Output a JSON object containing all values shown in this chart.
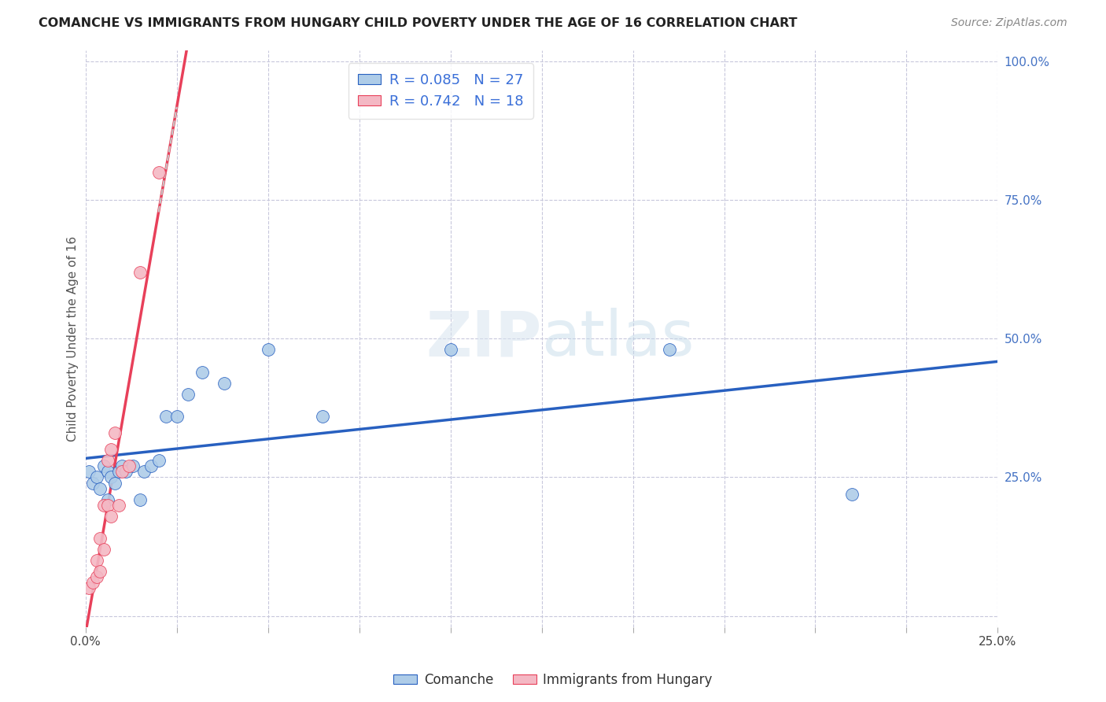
{
  "title": "COMANCHE VS IMMIGRANTS FROM HUNGARY CHILD POVERTY UNDER THE AGE OF 16 CORRELATION CHART",
  "source": "Source: ZipAtlas.com",
  "ylabel": "Child Poverty Under the Age of 16",
  "xlim": [
    0.0,
    0.25
  ],
  "ylim": [
    -0.02,
    1.02
  ],
  "comanche_R": "0.085",
  "comanche_N": "27",
  "hungary_R": "0.742",
  "hungary_N": "18",
  "comanche_color": "#aecce8",
  "hungary_color": "#f4b8c4",
  "trend_comanche_color": "#2860c0",
  "trend_hungary_color": "#e8405a",
  "trend_dashed_color": "#c8c8c8",
  "background_color": "#ffffff",
  "watermark_text": "ZIPatlas",
  "legend_labels": [
    "Comanche",
    "Immigrants from Hungary"
  ],
  "comanche_x": [
    0.001,
    0.002,
    0.003,
    0.004,
    0.005,
    0.006,
    0.006,
    0.007,
    0.008,
    0.009,
    0.01,
    0.011,
    0.013,
    0.015,
    0.016,
    0.018,
    0.02,
    0.022,
    0.025,
    0.028,
    0.032,
    0.038,
    0.05,
    0.065,
    0.1,
    0.16,
    0.21
  ],
  "comanche_y": [
    0.26,
    0.24,
    0.25,
    0.23,
    0.27,
    0.21,
    0.26,
    0.25,
    0.24,
    0.26,
    0.27,
    0.26,
    0.27,
    0.21,
    0.26,
    0.27,
    0.28,
    0.36,
    0.36,
    0.4,
    0.44,
    0.42,
    0.48,
    0.36,
    0.48,
    0.48,
    0.22
  ],
  "hungary_x": [
    0.001,
    0.002,
    0.003,
    0.003,
    0.004,
    0.004,
    0.005,
    0.005,
    0.006,
    0.006,
    0.007,
    0.007,
    0.008,
    0.009,
    0.01,
    0.012,
    0.015,
    0.02
  ],
  "hungary_y": [
    0.05,
    0.06,
    0.07,
    0.1,
    0.08,
    0.14,
    0.12,
    0.2,
    0.2,
    0.28,
    0.18,
    0.3,
    0.33,
    0.2,
    0.26,
    0.27,
    0.62,
    0.8
  ],
  "ytick_positions": [
    0.0,
    0.25,
    0.5,
    0.75,
    1.0
  ],
  "ytick_labels_right": [
    "25.0%",
    "50.0%",
    "75.0%",
    "100.0%"
  ],
  "ytick_right_positions": [
    0.25,
    0.5,
    0.75,
    1.0
  ],
  "xtick_positions": [
    0.0,
    0.025,
    0.05,
    0.075,
    0.1,
    0.125,
    0.15,
    0.175,
    0.2,
    0.225,
    0.25
  ]
}
